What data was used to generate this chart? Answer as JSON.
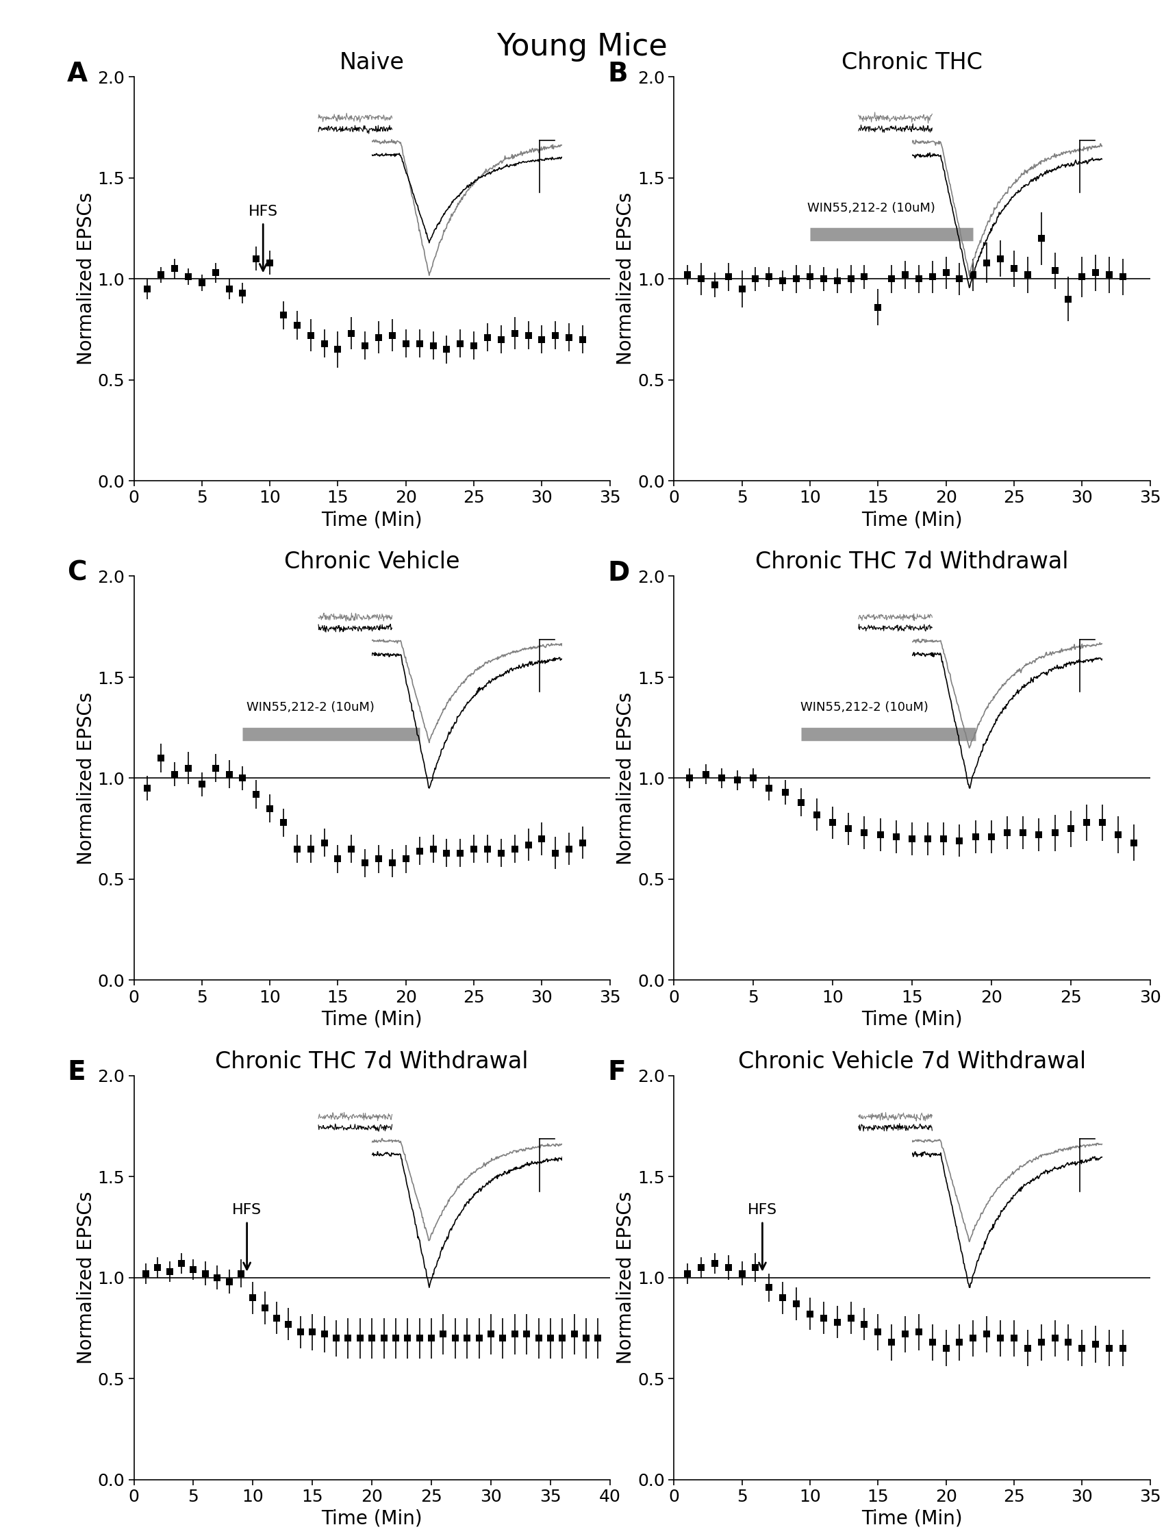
{
  "title": "Young Mice",
  "title_fontsize": 32,
  "panel_label_fontsize": 28,
  "axis_label_fontsize": 20,
  "tick_fontsize": 18,
  "subplot_title_fontsize": 24,
  "panels": [
    {
      "label": "A",
      "title": "Naive",
      "xlabel": "Time (Min)",
      "ylabel": "Normalized EPSCs",
      "xlim": [
        0,
        35
      ],
      "xticks": [
        0,
        5,
        10,
        15,
        20,
        25,
        30,
        35
      ],
      "ylim": [
        0.0,
        2.0
      ],
      "yticks": [
        0.0,
        0.5,
        1.0,
        1.5,
        2.0
      ],
      "hfs_x": 9.5,
      "hfs_label": "HFS",
      "win_bar": null,
      "win_label": null,
      "trace_before_scale": 1.0,
      "trace_after_scale": 0.65,
      "data_x": [
        1,
        2,
        3,
        4,
        5,
        6,
        7,
        8,
        9,
        10,
        11,
        12,
        13,
        14,
        15,
        16,
        17,
        18,
        19,
        20,
        21,
        22,
        23,
        24,
        25,
        26,
        27,
        28,
        29,
        30,
        31,
        32,
        33
      ],
      "data_y": [
        0.95,
        1.02,
        1.05,
        1.01,
        0.98,
        1.03,
        0.95,
        0.93,
        1.1,
        1.08,
        0.82,
        0.77,
        0.72,
        0.68,
        0.65,
        0.73,
        0.67,
        0.71,
        0.72,
        0.68,
        0.68,
        0.67,
        0.65,
        0.68,
        0.67,
        0.71,
        0.7,
        0.73,
        0.72,
        0.7,
        0.72,
        0.71,
        0.7
      ],
      "data_err": [
        0.05,
        0.04,
        0.05,
        0.04,
        0.04,
        0.05,
        0.05,
        0.05,
        0.06,
        0.06,
        0.07,
        0.07,
        0.08,
        0.07,
        0.09,
        0.08,
        0.07,
        0.08,
        0.08,
        0.07,
        0.07,
        0.07,
        0.07,
        0.07,
        0.07,
        0.07,
        0.07,
        0.08,
        0.07,
        0.07,
        0.07,
        0.07,
        0.07
      ]
    },
    {
      "label": "B",
      "title": "Chronic THC",
      "xlabel": "Time (Min)",
      "ylabel": "Normalized EPSCs",
      "xlim": [
        0,
        35
      ],
      "xticks": [
        0,
        5,
        10,
        15,
        20,
        25,
        30,
        35
      ],
      "ylim": [
        0.0,
        2.0
      ],
      "yticks": [
        0.0,
        0.5,
        1.0,
        1.5,
        2.0
      ],
      "hfs_x": null,
      "hfs_label": null,
      "win_bar": [
        10,
        22
      ],
      "win_label": "WIN55,212-2 (10uM)",
      "trace_before_scale": 1.0,
      "trace_after_scale": 1.0,
      "data_x": [
        1,
        2,
        3,
        4,
        5,
        6,
        7,
        8,
        9,
        10,
        11,
        12,
        13,
        14,
        15,
        16,
        17,
        18,
        19,
        20,
        21,
        22,
        23,
        24,
        25,
        26,
        27,
        28,
        29,
        30,
        31,
        32,
        33
      ],
      "data_y": [
        1.02,
        1.0,
        0.97,
        1.01,
        0.95,
        1.0,
        1.01,
        0.99,
        1.0,
        1.01,
        1.0,
        0.99,
        1.0,
        1.01,
        0.86,
        1.0,
        1.02,
        1.0,
        1.01,
        1.03,
        1.0,
        1.02,
        1.08,
        1.1,
        1.05,
        1.02,
        1.2,
        1.04,
        0.9,
        1.01,
        1.03,
        1.02,
        1.01
      ],
      "data_err": [
        0.05,
        0.08,
        0.06,
        0.07,
        0.09,
        0.06,
        0.05,
        0.05,
        0.07,
        0.06,
        0.06,
        0.06,
        0.07,
        0.06,
        0.09,
        0.07,
        0.07,
        0.07,
        0.08,
        0.08,
        0.08,
        0.08,
        0.1,
        0.09,
        0.09,
        0.09,
        0.13,
        0.09,
        0.11,
        0.1,
        0.09,
        0.09,
        0.09
      ]
    },
    {
      "label": "C",
      "title": "Chronic Vehicle",
      "xlabel": "Time (Min)",
      "ylabel": "Normalized EPSCs",
      "xlim": [
        0,
        35
      ],
      "xticks": [
        0,
        5,
        10,
        15,
        20,
        25,
        30,
        35
      ],
      "ylim": [
        0.0,
        2.0
      ],
      "yticks": [
        0.0,
        0.5,
        1.0,
        1.5,
        2.0
      ],
      "hfs_x": null,
      "hfs_label": null,
      "win_bar": [
        8,
        21
      ],
      "win_label": "WIN55,212-2 (10uM)",
      "trace_before_scale": 0.75,
      "trace_after_scale": 1.0,
      "data_x": [
        1,
        2,
        3,
        4,
        5,
        6,
        7,
        8,
        9,
        10,
        11,
        12,
        13,
        14,
        15,
        16,
        17,
        18,
        19,
        20,
        21,
        22,
        23,
        24,
        25,
        26,
        27,
        28,
        29,
        30,
        31,
        32,
        33
      ],
      "data_y": [
        0.95,
        1.1,
        1.02,
        1.05,
        0.97,
        1.05,
        1.02,
        1.0,
        0.92,
        0.85,
        0.78,
        0.65,
        0.65,
        0.68,
        0.6,
        0.65,
        0.58,
        0.6,
        0.58,
        0.6,
        0.64,
        0.65,
        0.63,
        0.63,
        0.65,
        0.65,
        0.63,
        0.65,
        0.67,
        0.7,
        0.63,
        0.65,
        0.68
      ],
      "data_err": [
        0.06,
        0.07,
        0.06,
        0.08,
        0.06,
        0.07,
        0.07,
        0.06,
        0.07,
        0.07,
        0.07,
        0.07,
        0.07,
        0.07,
        0.07,
        0.07,
        0.07,
        0.07,
        0.07,
        0.07,
        0.07,
        0.07,
        0.07,
        0.07,
        0.07,
        0.07,
        0.07,
        0.07,
        0.08,
        0.08,
        0.08,
        0.08,
        0.08
      ]
    },
    {
      "label": "D",
      "title": "Chronic THC 7d Withdrawal",
      "xlabel": "Time (Min)",
      "ylabel": "Normalized EPSCs",
      "xlim": [
        0,
        30
      ],
      "xticks": [
        0,
        5,
        10,
        15,
        20,
        25,
        30
      ],
      "ylim": [
        0.0,
        2.0
      ],
      "yticks": [
        0.0,
        0.5,
        1.0,
        1.5,
        2.0
      ],
      "hfs_x": null,
      "hfs_label": null,
      "win_bar": [
        8,
        19
      ],
      "win_label": "WIN55,212-2 (10uM)",
      "trace_before_scale": 0.8,
      "trace_after_scale": 1.0,
      "data_x": [
        1,
        2,
        3,
        4,
        5,
        6,
        7,
        8,
        9,
        10,
        11,
        12,
        13,
        14,
        15,
        16,
        17,
        18,
        19,
        20,
        21,
        22,
        23,
        24,
        25,
        26,
        27,
        28,
        29
      ],
      "data_y": [
        1.0,
        1.02,
        1.0,
        0.99,
        1.0,
        0.95,
        0.93,
        0.88,
        0.82,
        0.78,
        0.75,
        0.73,
        0.72,
        0.71,
        0.7,
        0.7,
        0.7,
        0.69,
        0.71,
        0.71,
        0.73,
        0.73,
        0.72,
        0.73,
        0.75,
        0.78,
        0.78,
        0.72,
        0.68
      ],
      "data_err": [
        0.05,
        0.05,
        0.05,
        0.05,
        0.05,
        0.06,
        0.06,
        0.07,
        0.08,
        0.08,
        0.08,
        0.08,
        0.08,
        0.08,
        0.08,
        0.08,
        0.08,
        0.08,
        0.08,
        0.08,
        0.08,
        0.08,
        0.08,
        0.09,
        0.09,
        0.09,
        0.09,
        0.09,
        0.09
      ]
    },
    {
      "label": "E",
      "title": "Chronic THC 7d Withdrawal",
      "xlabel": "Time (Min)",
      "ylabel": "Normalized EPSCs",
      "xlim": [
        0,
        40
      ],
      "xticks": [
        0,
        5,
        10,
        15,
        20,
        25,
        30,
        35,
        40
      ],
      "ylim": [
        0.0,
        2.0
      ],
      "yticks": [
        0.0,
        0.5,
        1.0,
        1.5,
        2.0
      ],
      "hfs_x": 9.5,
      "hfs_label": "HFS",
      "win_bar": null,
      "win_label": null,
      "trace_before_scale": 0.75,
      "trace_after_scale": 1.0,
      "data_x": [
        1,
        2,
        3,
        4,
        5,
        6,
        7,
        8,
        9,
        10,
        11,
        12,
        13,
        14,
        15,
        16,
        17,
        18,
        19,
        20,
        21,
        22,
        23,
        24,
        25,
        26,
        27,
        28,
        29,
        30,
        31,
        32,
        33,
        34,
        35,
        36,
        37,
        38,
        39
      ],
      "data_y": [
        1.02,
        1.05,
        1.03,
        1.07,
        1.04,
        1.02,
        1.0,
        0.98,
        1.02,
        0.9,
        0.85,
        0.8,
        0.77,
        0.73,
        0.73,
        0.72,
        0.7,
        0.7,
        0.7,
        0.7,
        0.7,
        0.7,
        0.7,
        0.7,
        0.7,
        0.72,
        0.7,
        0.7,
        0.7,
        0.72,
        0.7,
        0.72,
        0.72,
        0.7,
        0.7,
        0.7,
        0.72,
        0.7,
        0.7
      ],
      "data_err": [
        0.05,
        0.05,
        0.05,
        0.05,
        0.05,
        0.06,
        0.06,
        0.06,
        0.07,
        0.08,
        0.08,
        0.08,
        0.08,
        0.08,
        0.09,
        0.09,
        0.09,
        0.1,
        0.1,
        0.1,
        0.1,
        0.1,
        0.1,
        0.1,
        0.1,
        0.1,
        0.1,
        0.1,
        0.1,
        0.1,
        0.1,
        0.1,
        0.1,
        0.1,
        0.1,
        0.1,
        0.1,
        0.1,
        0.1
      ]
    },
    {
      "label": "F",
      "title": "Chronic Vehicle 7d Withdrawal",
      "xlabel": "Time (Min)",
      "ylabel": "Normalized EPSCs",
      "xlim": [
        0,
        35
      ],
      "xticks": [
        0,
        5,
        10,
        15,
        20,
        25,
        30,
        35
      ],
      "ylim": [
        0.0,
        2.0
      ],
      "yticks": [
        0.0,
        0.5,
        1.0,
        1.5,
        2.0
      ],
      "hfs_x": 6.5,
      "hfs_label": "HFS",
      "win_bar": null,
      "win_label": null,
      "trace_before_scale": 0.75,
      "trace_after_scale": 1.0,
      "data_x": [
        1,
        2,
        3,
        4,
        5,
        6,
        7,
        8,
        9,
        10,
        11,
        12,
        13,
        14,
        15,
        16,
        17,
        18,
        19,
        20,
        21,
        22,
        23,
        24,
        25,
        26,
        27,
        28,
        29,
        30,
        31,
        32,
        33
      ],
      "data_y": [
        1.02,
        1.05,
        1.07,
        1.05,
        1.02,
        1.05,
        0.95,
        0.9,
        0.87,
        0.82,
        0.8,
        0.78,
        0.8,
        0.77,
        0.73,
        0.68,
        0.72,
        0.73,
        0.68,
        0.65,
        0.68,
        0.7,
        0.72,
        0.7,
        0.7,
        0.65,
        0.68,
        0.7,
        0.68,
        0.65,
        0.67,
        0.65,
        0.65
      ],
      "data_err": [
        0.05,
        0.05,
        0.05,
        0.06,
        0.06,
        0.07,
        0.07,
        0.08,
        0.08,
        0.08,
        0.08,
        0.08,
        0.08,
        0.08,
        0.09,
        0.09,
        0.09,
        0.09,
        0.09,
        0.09,
        0.09,
        0.09,
        0.09,
        0.09,
        0.09,
        0.09,
        0.09,
        0.09,
        0.09,
        0.09,
        0.09,
        0.09,
        0.09
      ]
    }
  ]
}
